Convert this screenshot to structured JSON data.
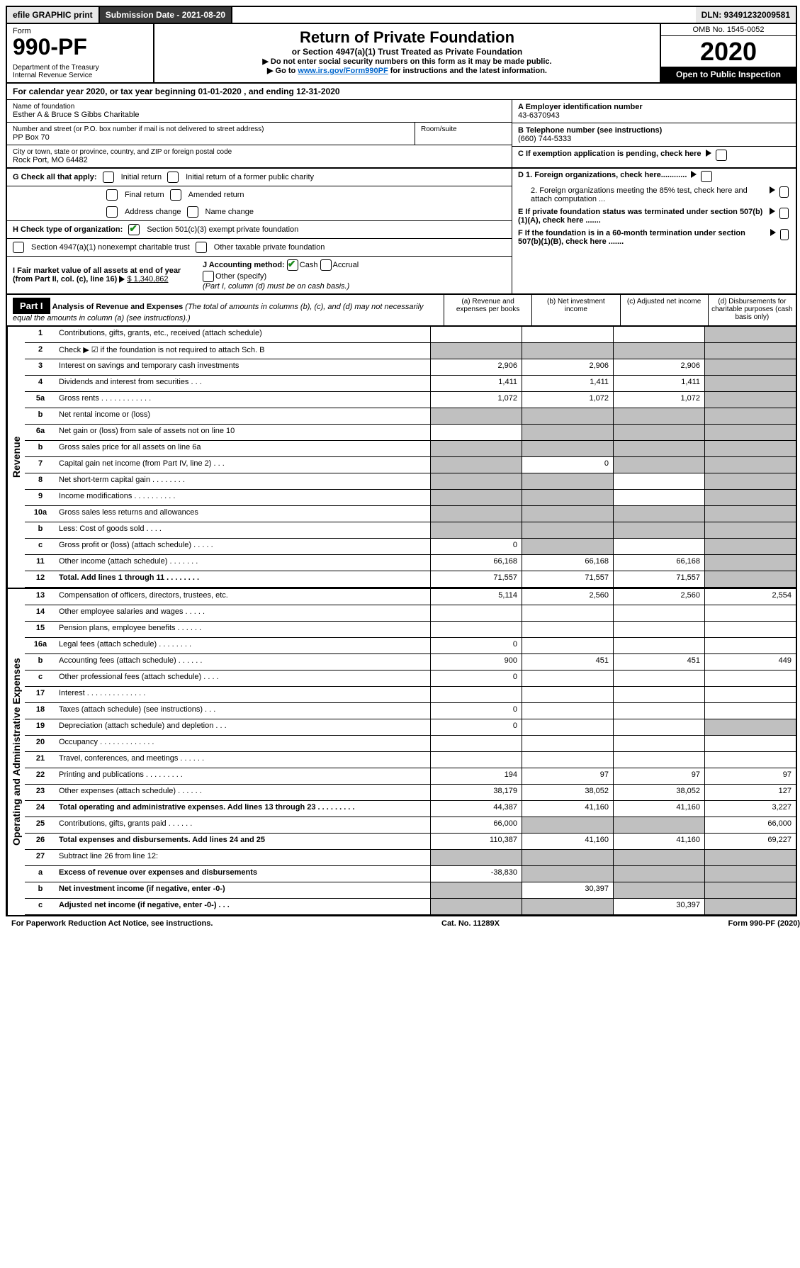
{
  "top": {
    "efile": "efile GRAPHIC print",
    "submission": "Submission Date - 2021-08-20",
    "dln": "DLN: 93491232009581"
  },
  "header": {
    "form": "Form",
    "form_num": "990-PF",
    "dept": "Department of the Treasury\nInternal Revenue Service",
    "title": "Return of Private Foundation",
    "subtitle": "or Section 4947(a)(1) Trust Treated as Private Foundation",
    "note1": "▶ Do not enter social security numbers on this form as it may be made public.",
    "note2_pre": "▶ Go to ",
    "link": "www.irs.gov/Form990PF",
    "note2_post": " for instructions and the latest information.",
    "omb": "OMB No. 1545-0052",
    "year": "2020",
    "open": "Open to Public Inspection"
  },
  "cal": "For calendar year 2020, or tax year beginning 01-01-2020                                           , and ending 12-31-2020",
  "info": {
    "name_lbl": "Name of foundation",
    "name": "Esther A & Bruce S Gibbs Charitable",
    "addr_lbl": "Number and street (or P.O. box number if mail is not delivered to street address)",
    "addr": "PP Box 70",
    "room_lbl": "Room/suite",
    "city_lbl": "City or town, state or province, country, and ZIP or foreign postal code",
    "city": "Rock Port, MO  64482",
    "a_lbl": "A Employer identification number",
    "a_val": "43-6370943",
    "b_lbl": "B Telephone number (see instructions)",
    "b_val": "(660) 744-5333",
    "c_lbl": "C If exemption application is pending, check here",
    "d1": "D 1. Foreign organizations, check here............",
    "d2": "2. Foreign organizations meeting the 85% test, check here and attach computation ...",
    "e_lbl": "E  If private foundation status was terminated under section 507(b)(1)(A), check here .......",
    "f_lbl": "F  If the foundation is in a 60-month termination under section 507(b)(1)(B), check here .......",
    "g_lbl": "G Check all that apply:",
    "g_opts": [
      "Initial return",
      "Initial return of a former public charity",
      "Final return",
      "Amended return",
      "Address change",
      "Name change"
    ],
    "h_lbl": "H Check type of organization:",
    "h1": "Section 501(c)(3) exempt private foundation",
    "h2": "Section 4947(a)(1) nonexempt charitable trust",
    "h3": "Other taxable private foundation",
    "i_lbl": "I Fair market value of all assets at end of year (from Part II, col. (c), line 16)",
    "i_val": "$  1,340,862",
    "j_lbl": "J Accounting method:",
    "j_cash": "Cash",
    "j_accrual": "Accrual",
    "j_other": "Other (specify)",
    "j_note": "(Part I, column (d) must be on cash basis.)"
  },
  "part1": {
    "label": "Part I",
    "title": "Analysis of Revenue and Expenses",
    "note": "(The total of amounts in columns (b), (c), and (d) may not necessarily equal the amounts in column (a) (see instructions).)",
    "cols": {
      "a": "(a)     Revenue and expenses per books",
      "b": "(b)   Net investment income",
      "c": "(c)  Adjusted net income",
      "d": "(d)   Disbursements for charitable purposes (cash basis only)"
    }
  },
  "side_rev": "Revenue",
  "side_exp": "Operating and Administrative Expenses",
  "rows": [
    {
      "n": "1",
      "desc": "Contributions, gifts, grants, etc., received (attach schedule)",
      "a": "",
      "b": "",
      "c": "",
      "d": "",
      "grey": [
        3
      ]
    },
    {
      "n": "2",
      "desc": "Check ▶ ☑ if the foundation is not required to attach Sch. B",
      "a": "",
      "b": "",
      "c": "",
      "d": "",
      "grey": [
        0,
        1,
        2,
        3
      ],
      "bold_not": true
    },
    {
      "n": "3",
      "desc": "Interest on savings and temporary cash investments",
      "a": "2,906",
      "b": "2,906",
      "c": "2,906",
      "d": "",
      "grey": [
        3
      ]
    },
    {
      "n": "4",
      "desc": "Dividends and interest from securities     .   .   .",
      "a": "1,411",
      "b": "1,411",
      "c": "1,411",
      "d": "",
      "grey": [
        3
      ]
    },
    {
      "n": "5a",
      "desc": "Gross rents      .   .   .   .   .   .   .   .   .   .   .   .",
      "a": "1,072",
      "b": "1,072",
      "c": "1,072",
      "d": "",
      "grey": [
        3
      ]
    },
    {
      "n": "b",
      "desc": "Net rental income or (loss)",
      "a": "",
      "b": "",
      "c": "",
      "d": "",
      "grey": [
        0,
        1,
        2,
        3
      ]
    },
    {
      "n": "6a",
      "desc": "Net gain or (loss) from sale of assets not on line 10",
      "a": "",
      "b": "",
      "c": "",
      "d": "",
      "grey": [
        1,
        2,
        3
      ]
    },
    {
      "n": "b",
      "desc": "Gross sales price for all assets on line 6a",
      "a": "",
      "b": "",
      "c": "",
      "d": "",
      "grey": [
        0,
        1,
        2,
        3
      ]
    },
    {
      "n": "7",
      "desc": "Capital gain net income (from Part IV, line 2)     .   .   .",
      "a": "",
      "b": "0",
      "c": "",
      "d": "",
      "grey": [
        0,
        2,
        3
      ]
    },
    {
      "n": "8",
      "desc": "Net short-term capital gain   .   .   .   .   .   .   .   .",
      "a": "",
      "b": "",
      "c": "",
      "d": "",
      "grey": [
        0,
        1,
        3
      ]
    },
    {
      "n": "9",
      "desc": "Income modifications  .   .   .   .   .   .   .   .   .   .",
      "a": "",
      "b": "",
      "c": "",
      "d": "",
      "grey": [
        0,
        1,
        3
      ]
    },
    {
      "n": "10a",
      "desc": "Gross sales less returns and allowances",
      "a": "",
      "b": "",
      "c": "",
      "d": "",
      "grey": [
        0,
        1,
        2,
        3
      ]
    },
    {
      "n": "b",
      "desc": "Less: Cost of goods sold      .   .   .   .",
      "a": "",
      "b": "",
      "c": "",
      "d": "",
      "grey": [
        0,
        1,
        2,
        3
      ]
    },
    {
      "n": "c",
      "desc": "Gross profit or (loss) (attach schedule)    .   .   .   .   .",
      "a": "0",
      "b": "",
      "c": "",
      "d": "",
      "grey": [
        1,
        3
      ]
    },
    {
      "n": "11",
      "desc": "Other income (attach schedule)    .   .   .   .   .   .   .",
      "a": "66,168",
      "b": "66,168",
      "c": "66,168",
      "d": "",
      "grey": [
        3
      ]
    },
    {
      "n": "12",
      "desc": "Total. Add lines 1 through 11    .   .   .   .   .   .   .   .",
      "a": "71,557",
      "b": "71,557",
      "c": "71,557",
      "d": "",
      "grey": [
        3
      ],
      "bold": true
    }
  ],
  "exp_rows": [
    {
      "n": "13",
      "desc": "Compensation of officers, directors, trustees, etc.",
      "a": "5,114",
      "b": "2,560",
      "c": "2,560",
      "d": "2,554"
    },
    {
      "n": "14",
      "desc": "Other employee salaries and wages    .   .   .   .   .",
      "a": "",
      "b": "",
      "c": "",
      "d": ""
    },
    {
      "n": "15",
      "desc": "Pension plans, employee benefits   .   .   .   .   .   .",
      "a": "",
      "b": "",
      "c": "",
      "d": ""
    },
    {
      "n": "16a",
      "desc": "Legal fees (attach schedule)  .   .   .   .   .   .   .   .",
      "a": "0",
      "b": "",
      "c": "",
      "d": ""
    },
    {
      "n": "b",
      "desc": "Accounting fees (attach schedule)   .   .   .   .   .   .",
      "a": "900",
      "b": "451",
      "c": "451",
      "d": "449"
    },
    {
      "n": "c",
      "desc": "Other professional fees (attach schedule)    .   .   .   .",
      "a": "0",
      "b": "",
      "c": "",
      "d": ""
    },
    {
      "n": "17",
      "desc": "Interest   .   .   .   .   .   .   .   .   .   .   .   .   .   .",
      "a": "",
      "b": "",
      "c": "",
      "d": ""
    },
    {
      "n": "18",
      "desc": "Taxes (attach schedule) (see instructions)    .   .   .",
      "a": "0",
      "b": "",
      "c": "",
      "d": ""
    },
    {
      "n": "19",
      "desc": "Depreciation (attach schedule) and depletion    .   .   .",
      "a": "0",
      "b": "",
      "c": "",
      "d": "",
      "grey": [
        3
      ]
    },
    {
      "n": "20",
      "desc": "Occupancy  .   .   .   .   .   .   .   .   .   .   .   .   .",
      "a": "",
      "b": "",
      "c": "",
      "d": ""
    },
    {
      "n": "21",
      "desc": "Travel, conferences, and meetings  .   .   .   .   .   .",
      "a": "",
      "b": "",
      "c": "",
      "d": ""
    },
    {
      "n": "22",
      "desc": "Printing and publications  .   .   .   .   .   .   .   .   .",
      "a": "194",
      "b": "97",
      "c": "97",
      "d": "97"
    },
    {
      "n": "23",
      "desc": "Other expenses (attach schedule)   .   .   .   .   .   .",
      "a": "38,179",
      "b": "38,052",
      "c": "38,052",
      "d": "127"
    },
    {
      "n": "24",
      "desc": "Total operating and administrative expenses. Add lines 13 through 23   .   .   .   .   .   .   .   .   .",
      "a": "44,387",
      "b": "41,160",
      "c": "41,160",
      "d": "3,227",
      "bold": true
    },
    {
      "n": "25",
      "desc": "Contributions, gifts, grants paid      .   .   .   .   .   .",
      "a": "66,000",
      "b": "",
      "c": "",
      "d": "66,000",
      "grey": [
        1,
        2
      ]
    },
    {
      "n": "26",
      "desc": "Total expenses and disbursements. Add lines 24 and 25",
      "a": "110,387",
      "b": "41,160",
      "c": "41,160",
      "d": "69,227",
      "bold": true
    },
    {
      "n": "27",
      "desc": "Subtract line 26 from line 12:",
      "a": "",
      "b": "",
      "c": "",
      "d": "",
      "grey": [
        0,
        1,
        2,
        3
      ]
    },
    {
      "n": "a",
      "desc": "Excess of revenue over expenses and disbursements",
      "a": "-38,830",
      "b": "",
      "c": "",
      "d": "",
      "grey": [
        1,
        2,
        3
      ],
      "bold": true
    },
    {
      "n": "b",
      "desc": "Net investment income (if negative, enter -0-)",
      "a": "",
      "b": "30,397",
      "c": "",
      "d": "",
      "grey": [
        0,
        2,
        3
      ],
      "bold": true
    },
    {
      "n": "c",
      "desc": "Adjusted net income (if negative, enter -0-)   .   .   .",
      "a": "",
      "b": "",
      "c": "30,397",
      "d": "",
      "grey": [
        0,
        1,
        3
      ],
      "bold": true
    }
  ],
  "footer": {
    "left": "For Paperwork Reduction Act Notice, see instructions.",
    "mid": "Cat. No. 11289X",
    "right": "Form 990-PF (2020)"
  }
}
